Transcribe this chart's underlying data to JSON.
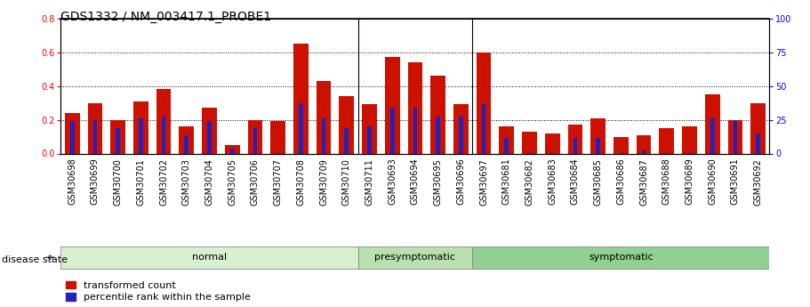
{
  "title": "GDS1332 / NM_003417.1_PROBE1",
  "samples": [
    "GSM30698",
    "GSM30699",
    "GSM30700",
    "GSM30701",
    "GSM30702",
    "GSM30703",
    "GSM30704",
    "GSM30705",
    "GSM30706",
    "GSM30707",
    "GSM30708",
    "GSM30709",
    "GSM30710",
    "GSM30711",
    "GSM30693",
    "GSM30694",
    "GSM30695",
    "GSM30696",
    "GSM30697",
    "GSM30681",
    "GSM30682",
    "GSM30683",
    "GSM30684",
    "GSM30685",
    "GSM30686",
    "GSM30687",
    "GSM30688",
    "GSM30689",
    "GSM30690",
    "GSM30691",
    "GSM30692"
  ],
  "transformed_count": [
    0.24,
    0.3,
    0.2,
    0.31,
    0.38,
    0.16,
    0.27,
    0.05,
    0.2,
    0.19,
    0.65,
    0.43,
    0.34,
    0.29,
    0.57,
    0.54,
    0.46,
    0.29,
    0.6,
    0.16,
    0.13,
    0.12,
    0.17,
    0.21,
    0.1,
    0.11,
    0.15,
    0.16,
    0.35,
    0.2,
    0.3
  ],
  "percentile_rank": [
    0.19,
    0.2,
    0.15,
    0.21,
    0.22,
    0.11,
    0.19,
    0.03,
    0.15,
    0.005,
    0.3,
    0.21,
    0.15,
    0.16,
    0.27,
    0.27,
    0.22,
    0.22,
    0.29,
    0.09,
    0.005,
    0.005,
    0.09,
    0.09,
    0.005,
    0.02,
    0.005,
    0.005,
    0.21,
    0.2,
    0.12
  ],
  "groups": [
    {
      "label": "normal",
      "start": 0,
      "end": 13
    },
    {
      "label": "presymptomatic",
      "start": 13,
      "end": 18
    },
    {
      "label": "symptomatic",
      "start": 18,
      "end": 31
    }
  ],
  "group_colors": [
    "#d8f0d0",
    "#b8e0b0",
    "#90d090"
  ],
  "ylim_left": [
    0,
    0.8
  ],
  "ylim_right": [
    0,
    100
  ],
  "yticks_left": [
    0,
    0.2,
    0.4,
    0.6,
    0.8
  ],
  "yticks_right": [
    0,
    25,
    50,
    75,
    100
  ],
  "bar_color_red": "#cc1100",
  "bar_color_blue": "#2222bb",
  "bar_width": 0.65,
  "disease_state_label": "disease state",
  "legend_labels": [
    "transformed count",
    "percentile rank within the sample"
  ],
  "background_color": "#ffffff",
  "title_fontsize": 10,
  "tick_fontsize": 7,
  "label_fontsize": 8,
  "group_label_fontsize": 8
}
